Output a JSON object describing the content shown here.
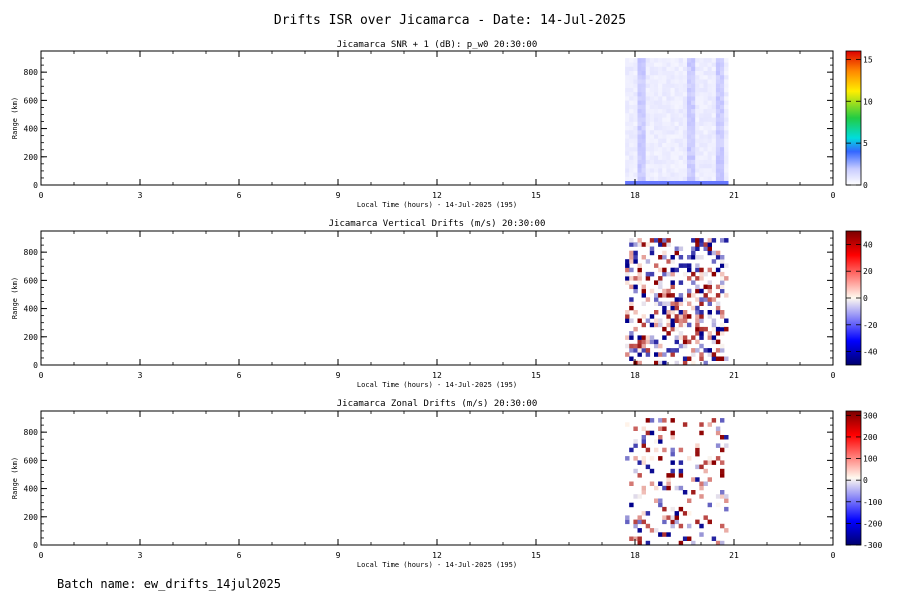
{
  "figure": {
    "title": "Drifts ISR over Jicamarca - Date: 14-Jul-2025",
    "batch_label": "Batch name: ew_drifts_14jul2025"
  },
  "chart_data": [
    {
      "type": "heatmap",
      "title": "Jicamarca SNR + 1 (dB): p_w0 20:30:00",
      "xlabel": "Local Time (hours) - 14-Jul-2025 (195)",
      "ylabel": "Range (km)",
      "x_ticks": [
        "0",
        "3",
        "6",
        "9",
        "12",
        "15",
        "18",
        "21",
        "0"
      ],
      "y_ticks": [
        "0",
        "200",
        "400",
        "600",
        "800"
      ],
      "xlim": [
        0,
        24
      ],
      "ylim": [
        0,
        950
      ],
      "data_extent": {
        "x": [
          17.7,
          20.8
        ],
        "y": [
          0,
          900
        ]
      },
      "colorbar": {
        "ticks": [
          "0",
          "5",
          "10",
          "15"
        ],
        "range": [
          0,
          16
        ],
        "colormap": "white-blue-cyan-green-yellow-red"
      },
      "pattern": "weak SNR above ~100 km; stronger columns near 18.1, 19.6 and 20.5 h; bright band at lowest range"
    },
    {
      "type": "heatmap",
      "title": "Jicamarca Vertical Drifts (m/s) 20:30:00",
      "xlabel": "Local Time (hours) - 14-Jul-2025 (195)",
      "ylabel": "Range (km)",
      "x_ticks": [
        "0",
        "3",
        "6",
        "9",
        "12",
        "15",
        "18",
        "21",
        "0"
      ],
      "y_ticks": [
        "0",
        "200",
        "400",
        "600",
        "800"
      ],
      "xlim": [
        0,
        24
      ],
      "ylim": [
        0,
        950
      ],
      "data_extent": {
        "x": [
          17.7,
          20.8
        ],
        "y": [
          0,
          900
        ]
      },
      "colorbar": {
        "ticks": [
          "-40",
          "-20",
          "0",
          "20",
          "40"
        ],
        "range": [
          -50,
          50
        ],
        "colormap": "blue-white-red"
      },
      "pattern": "scattered positive (red) and negative (blue) drifts between 17.7 and 20.8 h"
    },
    {
      "type": "heatmap",
      "title": "Jicamarca Zonal Drifts (m/s) 20:30:00",
      "xlabel": "Local Time (hours) - 14-Jul-2025 (195)",
      "ylabel": "Range (km)",
      "x_ticks": [
        "0",
        "3",
        "6",
        "9",
        "12",
        "15",
        "18",
        "21",
        "0"
      ],
      "y_ticks": [
        "0",
        "200",
        "400",
        "600",
        "800"
      ],
      "xlim": [
        0,
        24
      ],
      "ylim": [
        0,
        950
      ],
      "data_extent": {
        "x": [
          17.7,
          20.8
        ],
        "y": [
          0,
          900
        ]
      },
      "colorbar": {
        "ticks": [
          "-300",
          "-200",
          "-100",
          "0",
          "100",
          "200",
          "300"
        ],
        "range": [
          -300,
          320
        ],
        "colormap": "blue-white-red"
      },
      "pattern": "sparse scattered zonal drift pixels between 17.7 and 20.8 h"
    }
  ]
}
